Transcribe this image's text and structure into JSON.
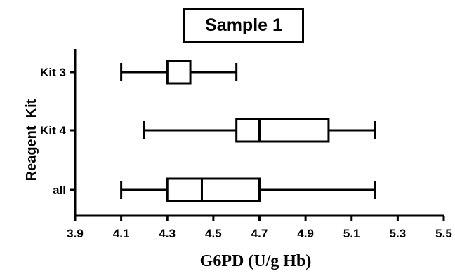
{
  "chart_data": {
    "type": "boxplot",
    "title": "Sample 1",
    "xlabel": "G6PD (U/g Hb)",
    "ylabel": "Reagent  Kit",
    "xlim": [
      3.9,
      5.5
    ],
    "xticks": [
      "3.9",
      "4.1",
      "4.3",
      "4.5",
      "4.7",
      "4.9",
      "5.1",
      "5.3",
      "5.5"
    ],
    "orientation": "horizontal",
    "grid": false,
    "categories": [
      "Kit 3",
      "Kit 4",
      "all"
    ],
    "series": [
      {
        "category": "Kit 3",
        "min": 4.1,
        "q1": 4.3,
        "median": 4.3,
        "q3": 4.4,
        "max": 4.6
      },
      {
        "category": "Kit 4",
        "min": 4.2,
        "q1": 4.6,
        "median": 4.7,
        "q3": 5.0,
        "max": 5.2
      },
      {
        "category": "all",
        "min": 4.1,
        "q1": 4.3,
        "median": 4.45,
        "q3": 4.7,
        "max": 5.2
      }
    ]
  }
}
